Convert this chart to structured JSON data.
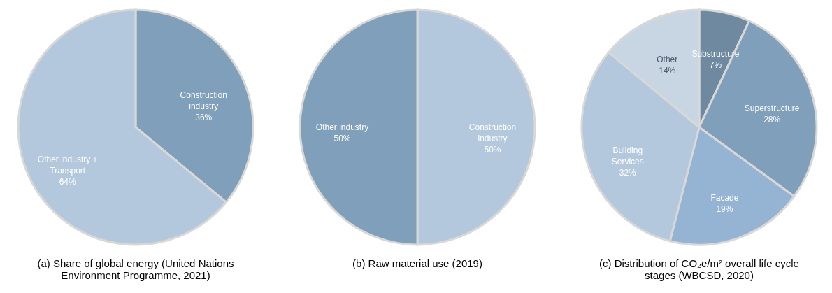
{
  "chart_data": [
    {
      "type": "pie",
      "title": "(a) Share of global energy (United Nations Environment Programme, 2021)",
      "categories": [
        "Construction industry",
        "Other industry + Transport"
      ],
      "values": [
        36,
        64
      ],
      "colors": [
        "#7f9fba",
        "#b3c8dc"
      ],
      "value_labels": [
        "36%",
        "64%"
      ],
      "legend": false
    },
    {
      "type": "pie",
      "title": "(b) Raw material use (2019)",
      "categories": [
        "Construction industry",
        "Other industry"
      ],
      "values": [
        50,
        50
      ],
      "colors": [
        "#b3c8dc",
        "#7f9fba"
      ],
      "value_labels": [
        "50%",
        "50%"
      ],
      "legend": false
    },
    {
      "type": "pie",
      "title": "(c) Distribution of CO₂e/m² overall life cycle stages (WBCSD, 2020)",
      "categories": [
        "Substructure",
        "Superstructure",
        "Facade",
        "Building Services",
        "Other"
      ],
      "values": [
        7,
        28,
        19,
        32,
        14
      ],
      "colors": [
        "#6f8aa0",
        "#7f9fba",
        "#95b3d3",
        "#b3c8dc",
        "#c8d6e3"
      ],
      "value_labels": [
        "7%",
        "28%",
        "19%",
        "32%",
        "14%"
      ],
      "legend": false
    }
  ]
}
